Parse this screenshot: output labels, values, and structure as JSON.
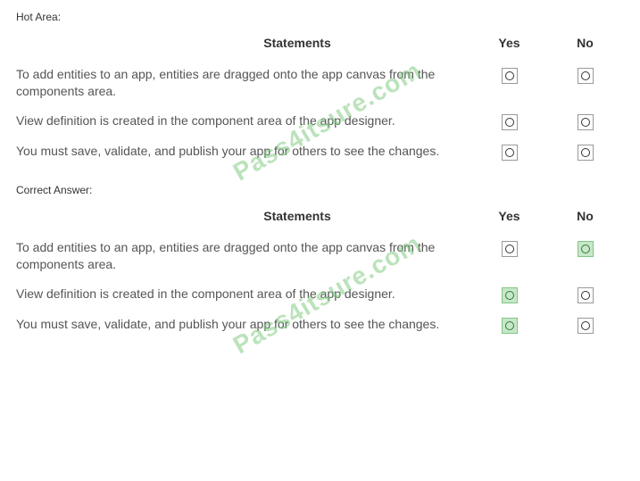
{
  "hot_area": {
    "label": "Hot Area:",
    "headers": {
      "statements": "Statements",
      "yes": "Yes",
      "no": "No"
    },
    "rows": [
      {
        "text": "To add entities to an app, entities are dragged onto the app canvas from the components area.",
        "yes_selected": false,
        "no_selected": false
      },
      {
        "text": "View definition is created in the component area of the app designer.",
        "yes_selected": false,
        "no_selected": false
      },
      {
        "text": "You must save, validate, and publish your app for others to see the changes.",
        "yes_selected": false,
        "no_selected": false
      }
    ],
    "watermark": "Pass4itsure.com"
  },
  "correct_answer": {
    "label": "Correct Answer:",
    "headers": {
      "statements": "Statements",
      "yes": "Yes",
      "no": "No"
    },
    "rows": [
      {
        "text": "To add entities to an app, entities are dragged onto the app canvas from the components area.",
        "yes_selected": false,
        "no_selected": true
      },
      {
        "text": "View definition is created in the component area of the app designer.",
        "yes_selected": true,
        "no_selected": false
      },
      {
        "text": "You must save, validate, and publish your app for others to see the changes.",
        "yes_selected": true,
        "no_selected": false
      }
    ],
    "watermark": "Pass4itsure.com"
  },
  "colors": {
    "background": "#ffffff",
    "text_dark": "#333333",
    "text_body": "#555555",
    "radio_border": "#999999",
    "selected_bg": "#c8e6c9",
    "selected_border": "#81c784",
    "watermark": "rgba(120, 200, 120, 0.5)"
  }
}
